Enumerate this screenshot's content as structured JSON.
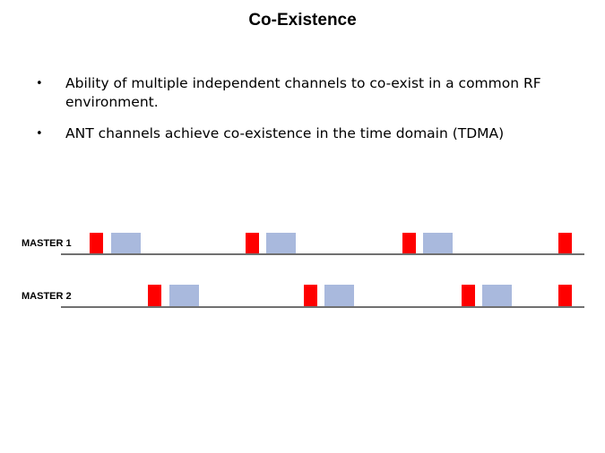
{
  "slide": {
    "title": "Co-Existence"
  },
  "bullets": [
    {
      "text": "Ability of multiple independent channels to co-exist in a common RF environment."
    },
    {
      "text": "ANT channels achieve co-existence in the time domain (TDMA)"
    }
  ],
  "bullet_symbol": "•",
  "diagram": {
    "colors": {
      "master_packet": "#ff0000",
      "slave_packet": "#a9b9dd",
      "timeline": "#404040"
    },
    "rows": [
      {
        "label": "MASTER 1",
        "slots": [
          {
            "kind": "master"
          },
          {
            "kind": "slave"
          },
          {
            "kind": "master"
          },
          {
            "kind": "slave"
          },
          {
            "kind": "master"
          },
          {
            "kind": "slave"
          },
          {
            "kind": "master"
          }
        ]
      },
      {
        "label": "MASTER 2",
        "slots": [
          {
            "kind": "master"
          },
          {
            "kind": "slave"
          },
          {
            "kind": "master"
          },
          {
            "kind": "slave"
          },
          {
            "kind": "master"
          },
          {
            "kind": "slave"
          },
          {
            "kind": "master"
          }
        ]
      }
    ]
  }
}
